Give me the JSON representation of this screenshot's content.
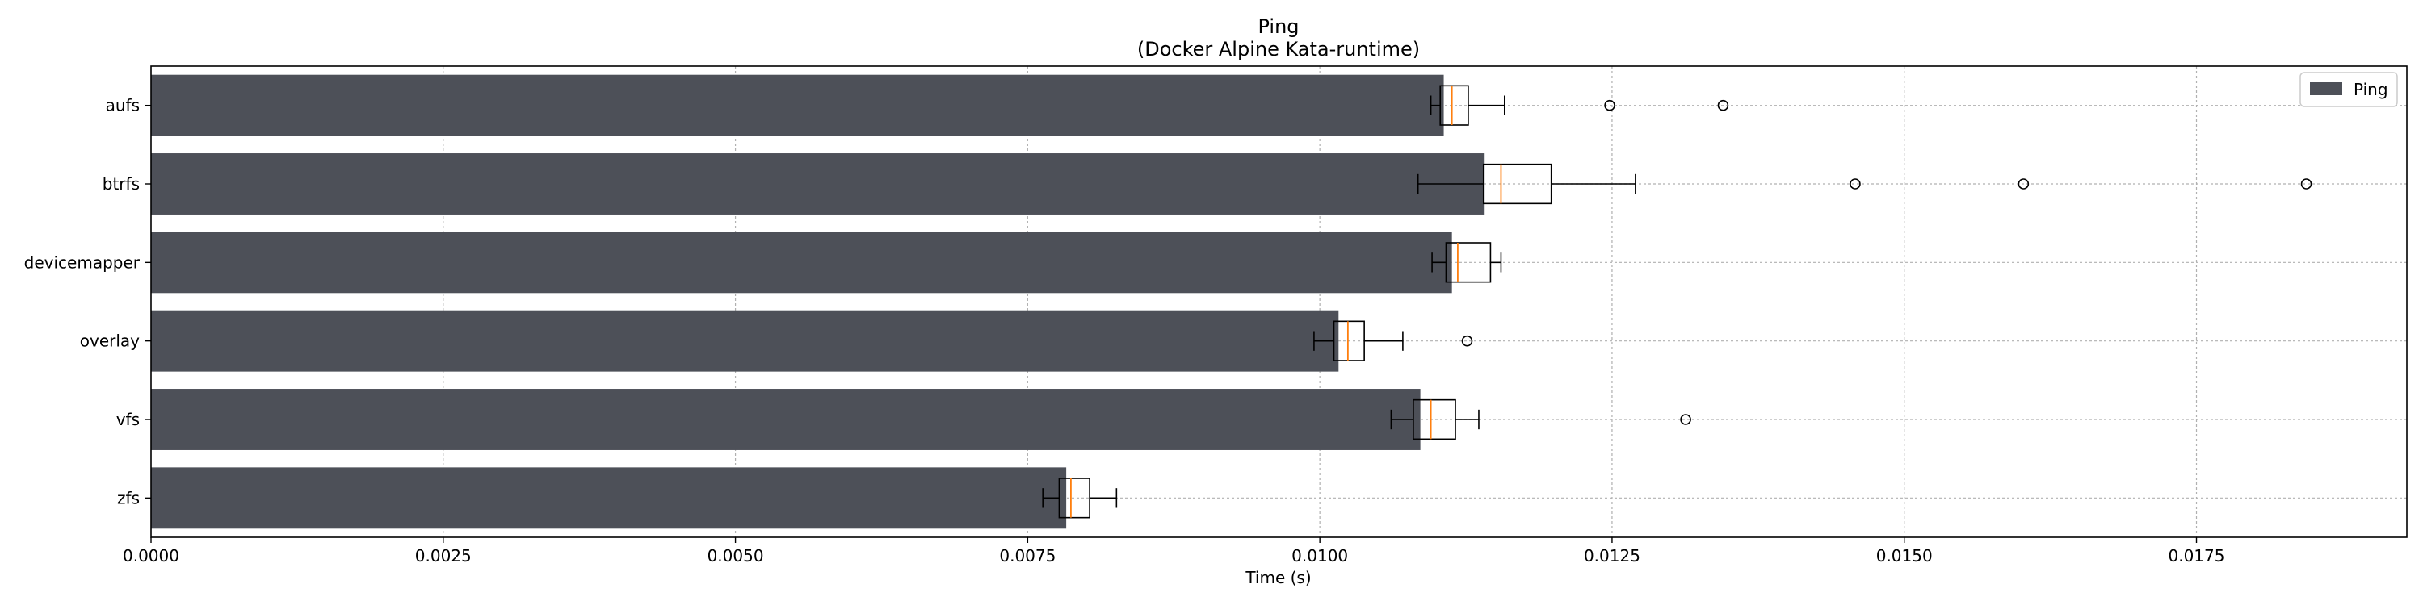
{
  "chart_data": {
    "type": "bar",
    "orientation": "horizontal",
    "title": "Ping",
    "subtitle": "(Docker Alpine Kata-runtime)",
    "xlabel": "Time (s)",
    "ylabel": "",
    "xlim": [
      0,
      0.0193
    ],
    "x_ticks": [
      "0.0000",
      "0.0025",
      "0.0050",
      "0.0075",
      "0.0100",
      "0.0125",
      "0.0150",
      "0.0175"
    ],
    "grid": true,
    "legend": {
      "placement": "top-right",
      "entries": [
        "Ping"
      ]
    },
    "colors": {
      "bar": "#4d5058",
      "median": "#ff7f0e",
      "box": "#000000",
      "grid": "#b0b0b0"
    },
    "categories": [
      "aufs",
      "btrfs",
      "devicemapper",
      "overlay",
      "vfs",
      "zfs"
    ],
    "series": [
      {
        "name": "Ping",
        "values": [
          0.01106,
          0.01141,
          0.01113,
          0.01016,
          0.01086,
          0.00783
        ]
      }
    ],
    "boxplots": [
      {
        "category": "aufs",
        "whisker_low": 0.01095,
        "q1": 0.01103,
        "median": 0.01113,
        "q3": 0.01127,
        "whisker_high": 0.01158,
        "outliers": [
          0.01248,
          0.01345
        ]
      },
      {
        "category": "btrfs",
        "whisker_low": 0.01084,
        "q1": 0.0114,
        "median": 0.01155,
        "q3": 0.01198,
        "whisker_high": 0.0127,
        "outliers": [
          0.01458,
          0.01602,
          0.01844
        ]
      },
      {
        "category": "devicemapper",
        "whisker_low": 0.01096,
        "q1": 0.01108,
        "median": 0.01118,
        "q3": 0.01146,
        "whisker_high": 0.01155,
        "outliers": []
      },
      {
        "category": "overlay",
        "whisker_low": 0.00995,
        "q1": 0.01012,
        "median": 0.01024,
        "q3": 0.01038,
        "whisker_high": 0.01071,
        "outliers": [
          0.01126
        ]
      },
      {
        "category": "vfs",
        "whisker_low": 0.01061,
        "q1": 0.0108,
        "median": 0.01095,
        "q3": 0.01116,
        "whisker_high": 0.01136,
        "outliers": [
          0.01313
        ]
      },
      {
        "category": "zfs",
        "whisker_low": 0.00763,
        "q1": 0.00777,
        "median": 0.00787,
        "q3": 0.00803,
        "whisker_high": 0.00826,
        "outliers": []
      }
    ]
  }
}
